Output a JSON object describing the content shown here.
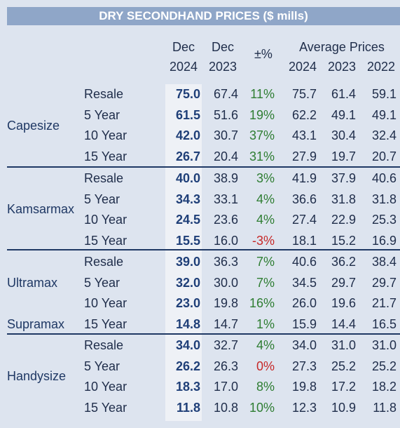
{
  "title": "DRY SECONDHAND PRICES ($ mills)",
  "headers": {
    "dec": "Dec",
    "y2024": "2024",
    "y2023": "2023",
    "pct": "±%",
    "avg": "Average Prices",
    "avg2024": "2024",
    "avg2023": "2023",
    "avg2022": "2022"
  },
  "groups": [
    {
      "label": "Capesize"
    },
    {
      "label": "Kamsarmax"
    },
    {
      "label": "Ultramax"
    },
    {
      "label": "Supramax"
    },
    {
      "label": "Handysize"
    }
  ],
  "rows": [
    {
      "cat": "Resale",
      "dec24": "75.0",
      "dec23": "67.4",
      "pct": "11%",
      "a24": "75.7",
      "a23": "61.4",
      "a22": "59.1"
    },
    {
      "cat": "5 Year",
      "dec24": "61.5",
      "dec23": "51.6",
      "pct": "19%",
      "a24": "62.2",
      "a23": "49.1",
      "a22": "49.1"
    },
    {
      "cat": "10 Year",
      "dec24": "42.0",
      "dec23": "30.7",
      "pct": "37%",
      "a24": "43.1",
      "a23": "30.4",
      "a22": "32.4"
    },
    {
      "cat": "15 Year",
      "dec24": "26.7",
      "dec23": "20.4",
      "pct": "31%",
      "a24": "27.9",
      "a23": "19.7",
      "a22": "20.7"
    },
    {
      "cat": "Resale",
      "dec24": "40.0",
      "dec23": "38.9",
      "pct": "3%",
      "a24": "41.9",
      "a23": "37.9",
      "a22": "40.6"
    },
    {
      "cat": "5 Year",
      "dec24": "34.3",
      "dec23": "33.1",
      "pct": "4%",
      "a24": "36.6",
      "a23": "31.8",
      "a22": "31.8"
    },
    {
      "cat": "10 Year",
      "dec24": "24.5",
      "dec23": "23.6",
      "pct": "4%",
      "a24": "27.4",
      "a23": "22.9",
      "a22": "25.3"
    },
    {
      "cat": "15 Year",
      "dec24": "15.5",
      "dec23": "16.0",
      "pct": "-3%",
      "a24": "18.1",
      "a23": "15.2",
      "a22": "16.9"
    },
    {
      "cat": "Resale",
      "dec24": "39.0",
      "dec23": "36.3",
      "pct": "7%",
      "a24": "40.6",
      "a23": "36.2",
      "a22": "38.4"
    },
    {
      "cat": "5 Year",
      "dec24": "32.0",
      "dec23": "30.0",
      "pct": "7%",
      "a24": "34.5",
      "a23": "29.7",
      "a22": "29.7"
    },
    {
      "cat": "10 Year",
      "dec24": "23.0",
      "dec23": "19.8",
      "pct": "16%",
      "a24": "26.0",
      "a23": "19.6",
      "a22": "21.7"
    },
    {
      "cat": "15 Year",
      "dec24": "14.8",
      "dec23": "14.7",
      "pct": "1%",
      "a24": "15.9",
      "a23": "14.4",
      "a22": "16.5"
    },
    {
      "cat": "Resale",
      "dec24": "34.0",
      "dec23": "32.7",
      "pct": "4%",
      "a24": "34.0",
      "a23": "31.0",
      "a22": "31.0"
    },
    {
      "cat": "5 Year",
      "dec24": "26.2",
      "dec23": "26.3",
      "pct": "0%",
      "a24": "27.3",
      "a23": "25.2",
      "a22": "25.2"
    },
    {
      "cat": "10 Year",
      "dec24": "18.3",
      "dec23": "17.0",
      "pct": "8%",
      "a24": "19.8",
      "a23": "17.2",
      "a22": "18.2"
    },
    {
      "cat": "15 Year",
      "dec24": "11.8",
      "dec23": "10.8",
      "pct": "10%",
      "a24": "12.3",
      "a23": "10.9",
      "a22": "11.8"
    }
  ]
}
